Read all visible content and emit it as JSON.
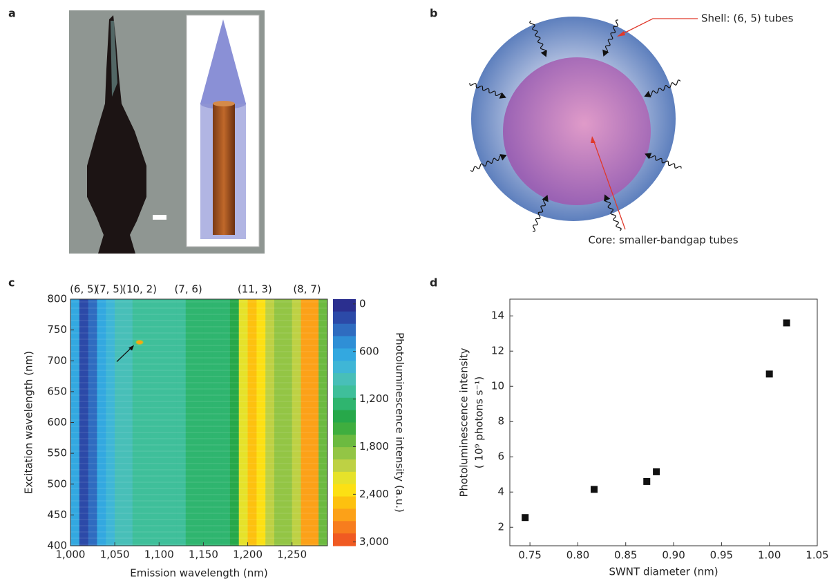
{
  "panels": {
    "a": "a",
    "b": "b",
    "c": "c",
    "d": "d"
  },
  "diagram": {
    "shell_label": "Shell: (6, 5) tubes",
    "core_label": "Core: smaller-bandgap tubes"
  },
  "chart_data": [
    {
      "type": "heatmap",
      "xlabel": "Emission wavelength (nm)",
      "ylabel": "Excitation wavelength (nm)",
      "x_bins": [
        1000,
        1010,
        1020,
        1030,
        1040,
        1050,
        1060,
        1070,
        1080,
        1090,
        1100,
        1110,
        1120,
        1130,
        1140,
        1150,
        1160,
        1170,
        1180,
        1190,
        1200,
        1210,
        1220,
        1230,
        1240,
        1250,
        1260,
        1270,
        1280,
        1290
      ],
      "values": [
        600,
        100,
        400,
        700,
        800,
        900,
        1000,
        1050,
        1050,
        1100,
        1100,
        1100,
        1150,
        1200,
        1200,
        1200,
        1250,
        1300,
        1400,
        2200,
        2500,
        2300,
        2000,
        1900,
        1900,
        2100,
        2700,
        2600,
        1800
      ],
      "xlim": [
        1000,
        1290
      ],
      "xticks": [
        {
          "value": 1000,
          "label": "1,000"
        },
        {
          "value": 1050,
          "label": "1,050"
        },
        {
          "value": 1100,
          "label": "1,100"
        },
        {
          "value": 1150,
          "label": "1,150"
        },
        {
          "value": 1200,
          "label": "1,200"
        },
        {
          "value": 1250,
          "label": "1,250"
        }
      ],
      "ylim": [
        400,
        800
      ],
      "yticks": [
        400,
        450,
        500,
        550,
        600,
        650,
        700,
        750,
        800
      ],
      "annotations": [
        {
          "text": "(6, 5)",
          "x": 1015
        },
        {
          "text": "(7, 5)",
          "x": 1044
        },
        {
          "text": "(10, 2)",
          "x": 1078
        },
        {
          "text": "(7, 6)",
          "x": 1133
        },
        {
          "text": "(11, 3)",
          "x": 1208
        },
        {
          "text": "(8, 7)",
          "x": 1267
        }
      ],
      "hotspot": {
        "x": 1078,
        "y": 730,
        "value": 2600
      },
      "colorbar": {
        "label": "Photoluminescence intensity (a.u.)",
        "clim": [
          -60,
          3050
        ],
        "ticks": [
          0,
          600,
          {
            "value": 1200,
            "label": "1,200"
          },
          {
            "value": 1800,
            "label": "1,800"
          },
          {
            "value": 2400,
            "label": "2,400"
          },
          {
            "value": 3000,
            "label": "3,000"
          }
        ]
      },
      "colormap": [
        "#2b2f8f",
        "#2c4aa8",
        "#2f6cc0",
        "#2f8fd6",
        "#33a8e0",
        "#3fb6d6",
        "#48bfb8",
        "#3fbf9a",
        "#2fb56f",
        "#27a84a",
        "#3fae3f",
        "#6cba40",
        "#93c545",
        "#bed144",
        "#e6e22a",
        "#fce014",
        "#fdc10f",
        "#fca118",
        "#f77d1e",
        "#f05a22"
      ]
    },
    {
      "type": "scatter",
      "xlabel": "SWNT diameter (nm)",
      "ylabel": [
        "Photoluminescence intensity",
        "(  10⁹ photons s⁻¹)"
      ],
      "x": [
        0.745,
        0.817,
        0.872,
        0.882,
        1.0,
        1.018
      ],
      "values": [
        2.55,
        4.15,
        4.6,
        5.15,
        10.7,
        13.6
      ],
      "color": "#111111",
      "xlim": [
        0.729,
        1.05
      ],
      "xticks": [
        0.75,
        {
          "value": 0.8,
          "label": "0.80"
        },
        0.85,
        {
          "value": 0.9,
          "label": "0.90"
        },
        0.95,
        {
          "value": 1.0,
          "label": "1.00"
        },
        1.05
      ],
      "ylim": [
        0.95,
        14.95
      ],
      "yticks": [
        2,
        4,
        6,
        8,
        10,
        12,
        14
      ]
    }
  ]
}
